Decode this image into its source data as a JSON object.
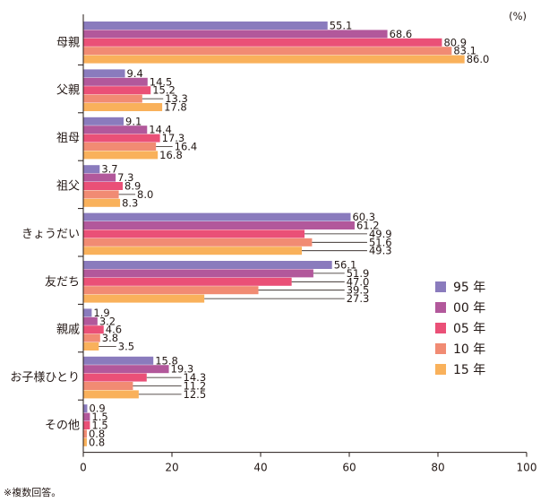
{
  "chart_data": {
    "type": "bar",
    "orientation": "horizontal",
    "unit": "(%)",
    "note": "※複数回答。",
    "categories": [
      "母親",
      "父親",
      "祖母",
      "祖父",
      "きょうだい",
      "友だち",
      "親戚",
      "お子様ひとり",
      "その他"
    ],
    "series": [
      {
        "name": "95 年",
        "color": "#8a7bbd",
        "values": [
          55.1,
          9.4,
          9.1,
          3.7,
          60.3,
          56.1,
          1.9,
          15.8,
          0.9
        ]
      },
      {
        "name": "00 年",
        "color": "#b2589b",
        "values": [
          68.6,
          14.5,
          14.4,
          7.3,
          61.2,
          51.9,
          3.2,
          19.3,
          1.5
        ]
      },
      {
        "name": "05 年",
        "color": "#ea5077",
        "values": [
          80.9,
          15.2,
          17.3,
          8.9,
          49.9,
          47.0,
          4.6,
          14.3,
          1.5
        ]
      },
      {
        "name": "10 年",
        "color": "#f18b73",
        "values": [
          83.1,
          13.3,
          16.4,
          8.0,
          51.6,
          39.5,
          3.8,
          11.2,
          0.8
        ]
      },
      {
        "name": "15 年",
        "color": "#f9b15b",
        "values": [
          86.0,
          17.8,
          16.8,
          8.3,
          49.3,
          27.3,
          3.5,
          12.5,
          0.8
        ]
      }
    ],
    "xlim": [
      0,
      100
    ],
    "xticks": [
      0,
      20,
      40,
      60,
      80,
      100
    ],
    "legend": "right-middle"
  }
}
